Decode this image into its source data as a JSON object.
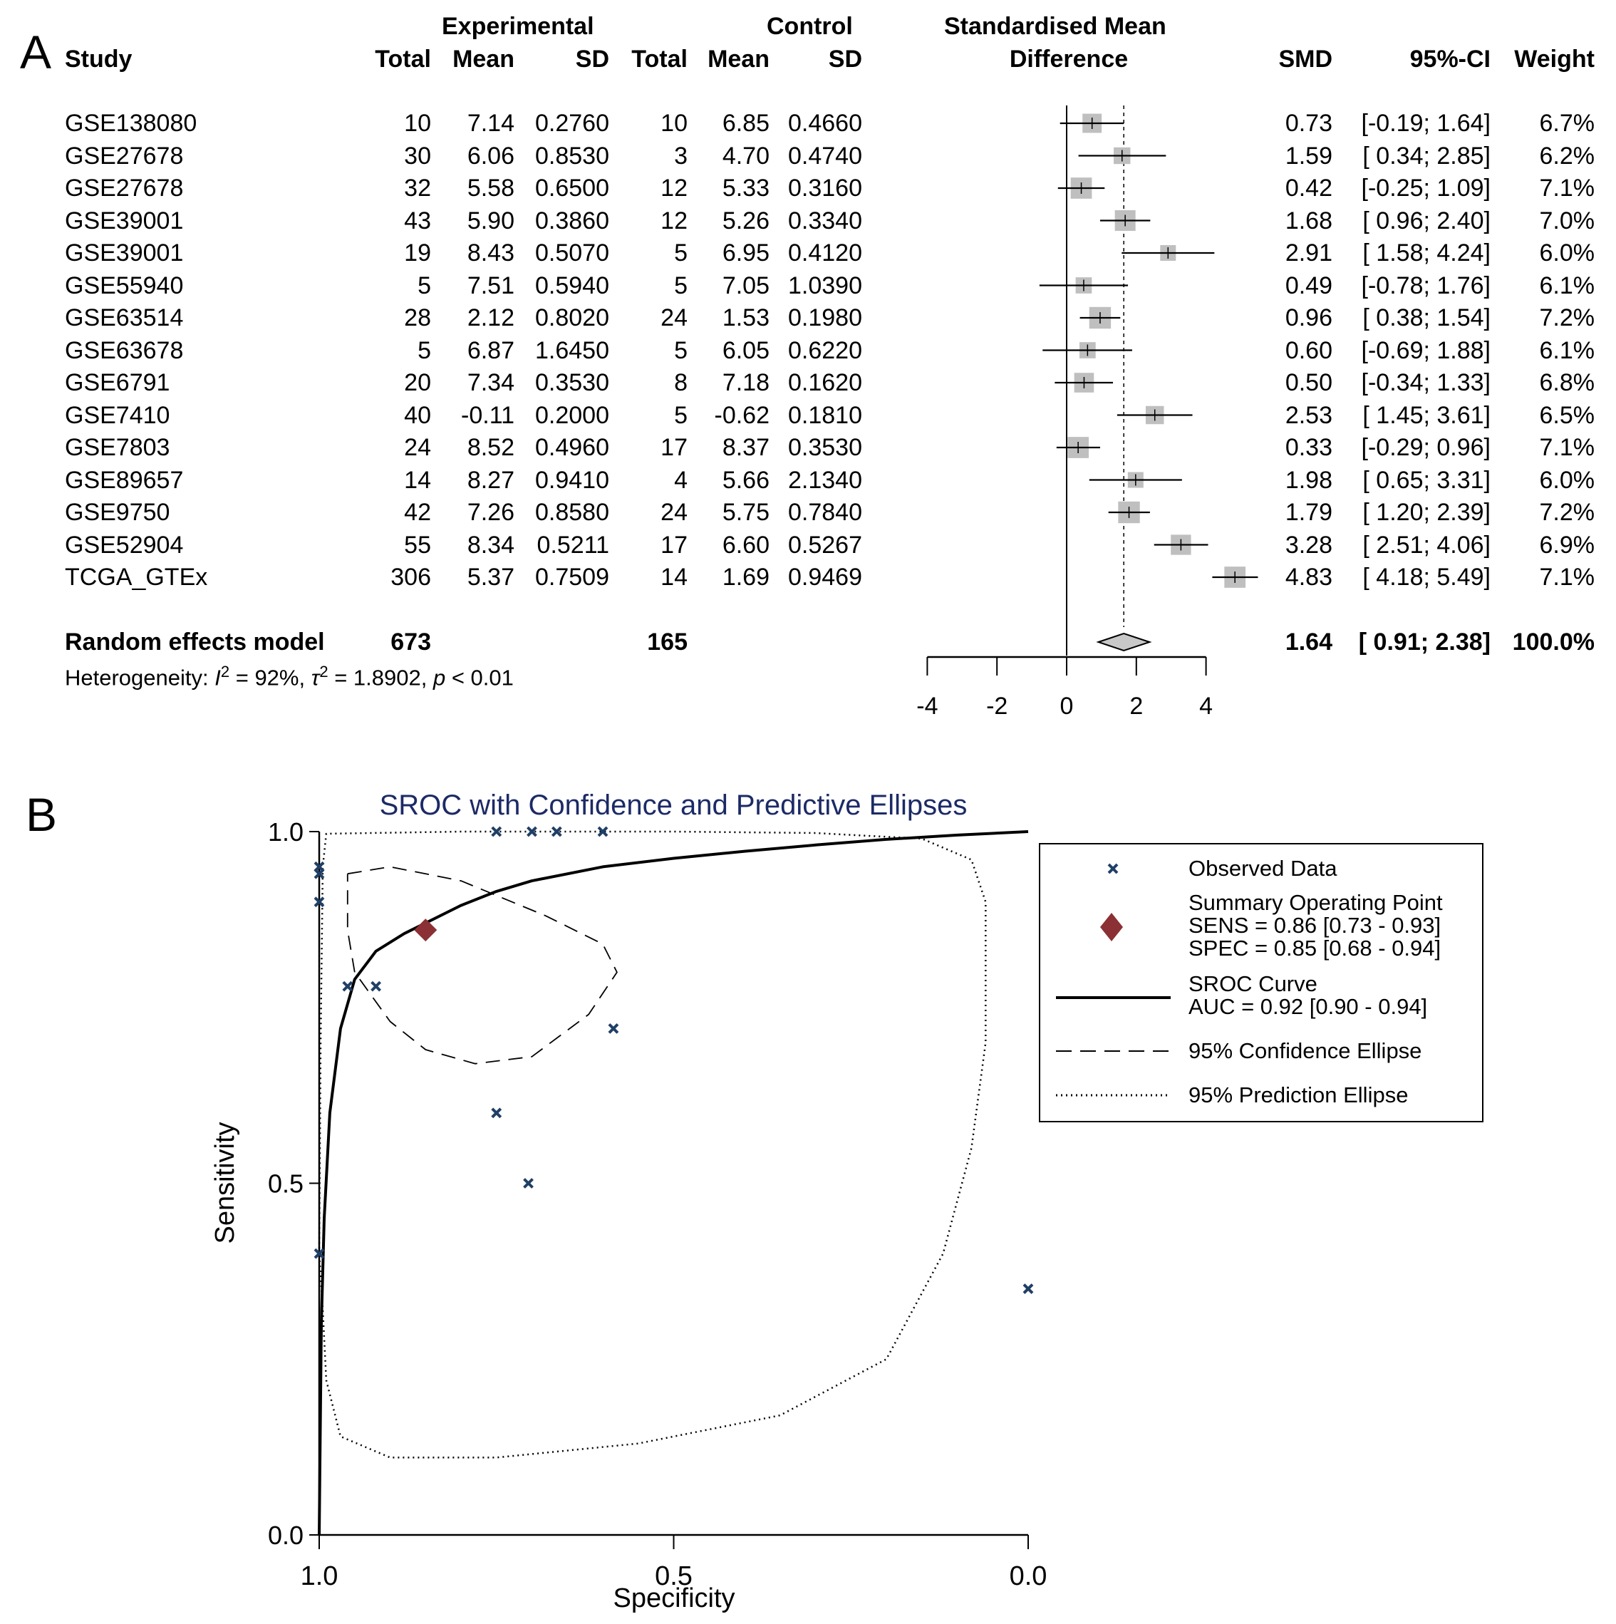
{
  "panel_a": {
    "letter": "A",
    "headers": {
      "study": "Study",
      "experimental_group": "Experimental",
      "control_group": "Control",
      "exp_total": "Total",
      "exp_mean": "Mean",
      "exp_sd": "SD",
      "ctl_total": "Total",
      "ctl_mean": "Mean",
      "ctl_sd": "SD",
      "smd_plot_line1": "Standardised Mean",
      "smd_plot_line2": "Difference",
      "smd": "SMD",
      "ci": "95%-CI",
      "weight": "Weight"
    },
    "pooled": {
      "label": "Random effects model",
      "exp_total": "673",
      "ctl_total": "165",
      "smd_text": "1.64",
      "ci_text": "[ 0.91; 2.38]",
      "weight_text": "100.0%"
    },
    "heterogeneity": {
      "prefix": "Heterogeneity: ",
      "i2_symbol": "I",
      "i2_value": " = 92%, ",
      "tau2_symbol": "τ",
      "tau2_value": " = 1.8902, ",
      "p_symbol": "p",
      "p_value": " < 0.01",
      "sup": "2"
    }
  },
  "panel_b": {
    "letter": "B",
    "legend": {
      "observed": "Observed Data",
      "summary_title": "Summary Operating Point",
      "sens": "SENS = 0.86 [0.73 - 0.93]",
      "spec": "SPEC = 0.85 [0.68 - 0.94]",
      "sroc_title": "SROC Curve",
      "auc": "AUC = 0.92 [0.90 - 0.94]",
      "conf": "95% Confidence Ellipse",
      "pred": "95% Prediction Ellipse"
    },
    "colors": {
      "observed": "#1f3f66",
      "summary": "#8b3034",
      "title": "#1c2a66"
    }
  },
  "chart_data": [
    {
      "type": "forest",
      "title": "Standardised Mean Difference",
      "xlim": [
        -4,
        4
      ],
      "xticks": [
        "-4",
        "-2",
        "0",
        "2",
        "4"
      ],
      "xtick_values": [
        -4,
        -2,
        0,
        2,
        4
      ],
      "reference_line": 0,
      "pooled_line": 1.64,
      "studies": [
        {
          "study": "GSE138080",
          "exp_total": "10",
          "exp_mean": "7.14",
          "exp_sd": "0.2760",
          "ctl_total": "10",
          "ctl_mean": "6.85",
          "ctl_sd": "0.4660",
          "smd": 0.73,
          "lo": -0.19,
          "hi": 1.64,
          "smd_text": "0.73",
          "ci_text": "[-0.19; 1.64]",
          "weight": 6.7,
          "weight_text": "6.7%"
        },
        {
          "study": "GSE27678",
          "exp_total": "30",
          "exp_mean": "6.06",
          "exp_sd": "0.8530",
          "ctl_total": "3",
          "ctl_mean": "4.70",
          "ctl_sd": "0.4740",
          "smd": 1.59,
          "lo": 0.34,
          "hi": 2.85,
          "smd_text": "1.59",
          "ci_text": "[ 0.34; 2.85]",
          "weight": 6.2,
          "weight_text": "6.2%"
        },
        {
          "study": "GSE27678",
          "exp_total": "32",
          "exp_mean": "5.58",
          "exp_sd": "0.6500",
          "ctl_total": "12",
          "ctl_mean": "5.33",
          "ctl_sd": "0.3160",
          "smd": 0.42,
          "lo": -0.25,
          "hi": 1.09,
          "smd_text": "0.42",
          "ci_text": "[-0.25; 1.09]",
          "weight": 7.1,
          "weight_text": "7.1%"
        },
        {
          "study": "GSE39001",
          "exp_total": "43",
          "exp_mean": "5.90",
          "exp_sd": "0.3860",
          "ctl_total": "12",
          "ctl_mean": "5.26",
          "ctl_sd": "0.3340",
          "smd": 1.68,
          "lo": 0.96,
          "hi": 2.4,
          "smd_text": "1.68",
          "ci_text": "[ 0.96; 2.40]",
          "weight": 7.0,
          "weight_text": "7.0%"
        },
        {
          "study": "GSE39001",
          "exp_total": "19",
          "exp_mean": "8.43",
          "exp_sd": "0.5070",
          "ctl_total": "5",
          "ctl_mean": "6.95",
          "ctl_sd": "0.4120",
          "smd": 2.91,
          "lo": 1.58,
          "hi": 4.24,
          "smd_text": "2.91",
          "ci_text": "[ 1.58; 4.24]",
          "weight": 6.0,
          "weight_text": "6.0%"
        },
        {
          "study": "GSE55940",
          "exp_total": "5",
          "exp_mean": "7.51",
          "exp_sd": "0.5940",
          "ctl_total": "5",
          "ctl_mean": "7.05",
          "ctl_sd": "1.0390",
          "smd": 0.49,
          "lo": -0.78,
          "hi": 1.76,
          "smd_text": "0.49",
          "ci_text": "[-0.78; 1.76]",
          "weight": 6.1,
          "weight_text": "6.1%"
        },
        {
          "study": "GSE63514",
          "exp_total": "28",
          "exp_mean": "2.12",
          "exp_sd": "0.8020",
          "ctl_total": "24",
          "ctl_mean": "1.53",
          "ctl_sd": "0.1980",
          "smd": 0.96,
          "lo": 0.38,
          "hi": 1.54,
          "smd_text": "0.96",
          "ci_text": "[ 0.38; 1.54]",
          "weight": 7.2,
          "weight_text": "7.2%"
        },
        {
          "study": "GSE63678",
          "exp_total": "5",
          "exp_mean": "6.87",
          "exp_sd": "1.6450",
          "ctl_total": "5",
          "ctl_mean": "6.05",
          "ctl_sd": "0.6220",
          "smd": 0.6,
          "lo": -0.69,
          "hi": 1.88,
          "smd_text": "0.60",
          "ci_text": "[-0.69; 1.88]",
          "weight": 6.1,
          "weight_text": "6.1%"
        },
        {
          "study": "GSE6791",
          "exp_total": "20",
          "exp_mean": "7.34",
          "exp_sd": "0.3530",
          "ctl_total": "8",
          "ctl_mean": "7.18",
          "ctl_sd": "0.1620",
          "smd": 0.5,
          "lo": -0.34,
          "hi": 1.33,
          "smd_text": "0.50",
          "ci_text": "[-0.34; 1.33]",
          "weight": 6.8,
          "weight_text": "6.8%"
        },
        {
          "study": "GSE7410",
          "exp_total": "40",
          "exp_mean": "-0.11",
          "exp_sd": "0.2000",
          "ctl_total": "5",
          "ctl_mean": "-0.62",
          "ctl_sd": "0.1810",
          "smd": 2.53,
          "lo": 1.45,
          "hi": 3.61,
          "smd_text": "2.53",
          "ci_text": "[ 1.45; 3.61]",
          "weight": 6.5,
          "weight_text": "6.5%"
        },
        {
          "study": "GSE7803",
          "exp_total": "24",
          "exp_mean": "8.52",
          "exp_sd": "0.4960",
          "ctl_total": "17",
          "ctl_mean": "8.37",
          "ctl_sd": "0.3530",
          "smd": 0.33,
          "lo": -0.29,
          "hi": 0.96,
          "smd_text": "0.33",
          "ci_text": "[-0.29; 0.96]",
          "weight": 7.1,
          "weight_text": "7.1%"
        },
        {
          "study": "GSE89657",
          "exp_total": "14",
          "exp_mean": "8.27",
          "exp_sd": "0.9410",
          "ctl_total": "4",
          "ctl_mean": "5.66",
          "ctl_sd": "2.1340",
          "smd": 1.98,
          "lo": 0.65,
          "hi": 3.31,
          "smd_text": "1.98",
          "ci_text": "[ 0.65; 3.31]",
          "weight": 6.0,
          "weight_text": "6.0%"
        },
        {
          "study": "GSE9750",
          "exp_total": "42",
          "exp_mean": "7.26",
          "exp_sd": "0.8580",
          "ctl_total": "24",
          "ctl_mean": "5.75",
          "ctl_sd": "0.7840",
          "smd": 1.79,
          "lo": 1.2,
          "hi": 2.39,
          "smd_text": "1.79",
          "ci_text": "[ 1.20; 2.39]",
          "weight": 7.2,
          "weight_text": "7.2%"
        },
        {
          "study": "GSE52904",
          "exp_total": "55",
          "exp_mean": "8.34",
          "exp_sd": "0.5211",
          "ctl_total": "17",
          "ctl_mean": "6.60",
          "ctl_sd": "0.5267",
          "smd": 3.28,
          "lo": 2.51,
          "hi": 4.06,
          "smd_text": "3.28",
          "ci_text": "[ 2.51; 4.06]",
          "weight": 6.9,
          "weight_text": "6.9%"
        },
        {
          "study": "TCGA_GTEx",
          "exp_total": "306",
          "exp_mean": "5.37",
          "exp_sd": "0.7509",
          "ctl_total": "14",
          "ctl_mean": "1.69",
          "ctl_sd": "0.9469",
          "smd": 4.83,
          "lo": 4.18,
          "hi": 5.49,
          "smd_text": "4.83",
          "ci_text": "[ 4.18; 5.49]",
          "weight": 7.1,
          "weight_text": "7.1%"
        }
      ],
      "pooled": {
        "smd": 1.64,
        "lo": 0.91,
        "hi": 2.38
      }
    },
    {
      "type": "scatter",
      "title": "SROC with Confidence and Predictive Ellipses",
      "xlabel": "Specificity",
      "ylabel": "Sensitivity",
      "xlim": [
        1.0,
        0.0
      ],
      "ylim": [
        0.0,
        1.0
      ],
      "xticks": [
        "1.0",
        "0.5",
        "0.0"
      ],
      "xtick_values": [
        1.0,
        0.5,
        0.0
      ],
      "yticks": [
        "0.0",
        "0.5",
        "1.0"
      ],
      "ytick_values": [
        0.0,
        0.5,
        1.0
      ],
      "legend_position": "right",
      "observed": [
        {
          "spec": 1.0,
          "sens": 0.95
        },
        {
          "spec": 1.0,
          "sens": 0.94
        },
        {
          "spec": 1.0,
          "sens": 0.9
        },
        {
          "spec": 0.96,
          "sens": 0.78
        },
        {
          "spec": 0.92,
          "sens": 0.78
        },
        {
          "spec": 0.75,
          "sens": 1.0
        },
        {
          "spec": 0.7,
          "sens": 1.0
        },
        {
          "spec": 0.665,
          "sens": 1.0
        },
        {
          "spec": 0.6,
          "sens": 1.0
        },
        {
          "spec": 0.585,
          "sens": 0.72
        },
        {
          "spec": 0.75,
          "sens": 0.6
        },
        {
          "spec": 0.705,
          "sens": 0.5
        },
        {
          "spec": 1.0,
          "sens": 0.4
        },
        {
          "spec": 0.0,
          "sens": 0.35
        }
      ],
      "summary_point": {
        "spec": 0.85,
        "sens": 0.86
      },
      "sroc_curve": [
        [
          1.0,
          0.0
        ],
        [
          0.999,
          0.1
        ],
        [
          0.997,
          0.3
        ],
        [
          0.993,
          0.45
        ],
        [
          0.985,
          0.6
        ],
        [
          0.97,
          0.72
        ],
        [
          0.95,
          0.79
        ],
        [
          0.92,
          0.83
        ],
        [
          0.88,
          0.855
        ],
        [
          0.85,
          0.87
        ],
        [
          0.8,
          0.895
        ],
        [
          0.75,
          0.915
        ],
        [
          0.7,
          0.93
        ],
        [
          0.6,
          0.95
        ],
        [
          0.5,
          0.962
        ],
        [
          0.4,
          0.972
        ],
        [
          0.3,
          0.981
        ],
        [
          0.2,
          0.989
        ],
        [
          0.1,
          0.995
        ],
        [
          0.0,
          1.0
        ]
      ],
      "confidence_ellipse": [
        [
          0.96,
          0.94
        ],
        [
          0.9,
          0.95
        ],
        [
          0.8,
          0.93
        ],
        [
          0.68,
          0.88
        ],
        [
          0.6,
          0.84
        ],
        [
          0.58,
          0.8
        ],
        [
          0.62,
          0.74
        ],
        [
          0.7,
          0.68
        ],
        [
          0.78,
          0.67
        ],
        [
          0.85,
          0.69
        ],
        [
          0.9,
          0.73
        ],
        [
          0.95,
          0.8
        ],
        [
          0.96,
          0.86
        ],
        [
          0.96,
          0.91
        ],
        [
          0.96,
          0.94
        ]
      ],
      "prediction_ellipse": [
        [
          1.0,
          0.4
        ],
        [
          0.998,
          0.7
        ],
        [
          0.995,
          0.95
        ],
        [
          0.99,
          0.997
        ],
        [
          0.8,
          1.0
        ],
        [
          0.5,
          1.0
        ],
        [
          0.3,
          0.998
        ],
        [
          0.15,
          0.99
        ],
        [
          0.08,
          0.96
        ],
        [
          0.06,
          0.9
        ],
        [
          0.06,
          0.7
        ],
        [
          0.08,
          0.55
        ],
        [
          0.12,
          0.4
        ],
        [
          0.2,
          0.25
        ],
        [
          0.35,
          0.17
        ],
        [
          0.55,
          0.13
        ],
        [
          0.75,
          0.11
        ],
        [
          0.9,
          0.11
        ],
        [
          0.97,
          0.14
        ],
        [
          0.99,
          0.22
        ],
        [
          0.995,
          0.32
        ],
        [
          1.0,
          0.4
        ]
      ]
    }
  ]
}
